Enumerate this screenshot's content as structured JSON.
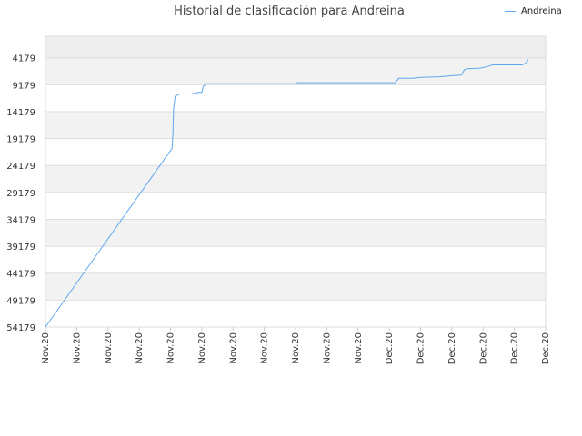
{
  "chart_data": {
    "type": "line",
    "title": "Historial de clasificación para Andreina",
    "ylabel": "",
    "xlabel": "",
    "y_inverted": true,
    "ylim": [
      54179,
      179
    ],
    "y_ticks": [
      "4179",
      "9179",
      "14179",
      "19179",
      "24179",
      "29179",
      "34179",
      "39179",
      "44179",
      "49179",
      "54179"
    ],
    "x_ticks": [
      "Nov.20",
      "Nov.20",
      "Nov.20",
      "Nov.20",
      "Nov.20",
      "Nov.20",
      "Nov.20",
      "Nov.20",
      "Nov.20",
      "Nov.20",
      "Nov.20",
      "Dec.20",
      "Dec.20",
      "Dec.20",
      "Dec.20",
      "Dec.20",
      "Dec.20"
    ],
    "grid": true,
    "legend_position": "top-right",
    "series": [
      {
        "name": "Andreina",
        "color": "#5fa8ef",
        "x": [
          0,
          0.5,
          1,
          1.5,
          2,
          2.5,
          3,
          3.5,
          3.85,
          4,
          4.02,
          4.05,
          4.08,
          4.12,
          4.2,
          4.5,
          4.9,
          5.0,
          5.1,
          5.2,
          6,
          7,
          8,
          8.1,
          9,
          10,
          11,
          11.15,
          12,
          12.1,
          13,
          13.2,
          13.5,
          13.7,
          13.8,
          14,
          14.5,
          15,
          16,
          16.2,
          16.5,
          17.0,
          17.05,
          18,
          19,
          19.1,
          20,
          21,
          21.1,
          22,
          22.5,
          22.9,
          23,
          23.2,
          23.4,
          23.6,
          24,
          24.5,
          25,
          26,
          27,
          28,
          29,
          30,
          30.5,
          31,
          32,
          33,
          33.5
        ],
        "y": [
          54179,
          51179,
          48179,
          45179,
          42179,
          39179,
          36179,
          33179,
          21500,
          20500,
          18500,
          14500,
          12500,
          11500,
          11300,
          11100,
          10900,
          10900,
          10000,
          9000,
          9000,
          9000,
          9000,
          9000,
          9000,
          9000,
          9000,
          9000,
          9000,
          8800,
          8800,
          8800,
          8800,
          8800,
          8800,
          8800,
          8800,
          8800,
          8800,
          8800,
          8800,
          8800,
          8800,
          8800,
          8800,
          8800,
          8800,
          8800,
          8800,
          8800,
          8800,
          8800,
          8800,
          8800,
          8800,
          8800,
          8800,
          8800,
          8800,
          8800,
          8800,
          8800,
          8800,
          8800,
          8800,
          8800,
          8800,
          8800,
          8800
        ],
        "note_values": [
          54179,
          21500,
          11300,
          10900,
          9000,
          8800,
          7750,
          7400,
          7000,
          6100,
          5900,
          5400,
          5000,
          4700,
          4179
        ]
      }
    ]
  }
}
